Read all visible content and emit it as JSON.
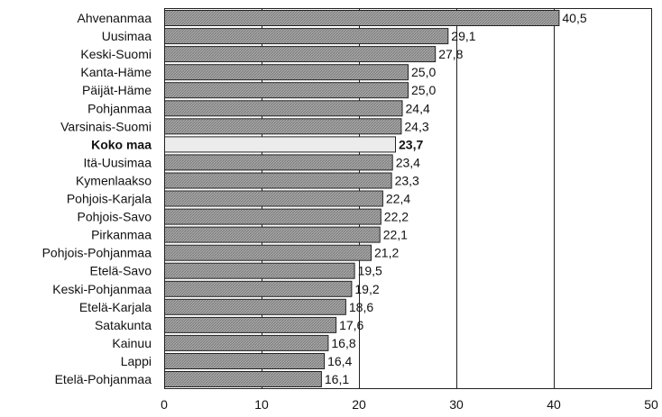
{
  "chart_data": {
    "type": "bar",
    "orientation": "horizontal",
    "categories": [
      "Ahvenanmaa",
      "Uusimaa",
      "Keski-Suomi",
      "Kanta-Häme",
      "Päijät-Häme",
      "Pohjanmaa",
      "Varsinais-Suomi",
      "Koko maa",
      "Itä-Uusimaa",
      "Kymenlaakso",
      "Pohjois-Karjala",
      "Pohjois-Savo",
      "Pirkanmaa",
      "Pohjois-Pohjanmaa",
      "Etelä-Savo",
      "Keski-Pohjanmaa",
      "Etelä-Karjala",
      "Satakunta",
      "Kainuu",
      "Lappi",
      "Etelä-Pohjanmaa"
    ],
    "values": [
      40.5,
      29.1,
      27.8,
      25.0,
      25.0,
      24.4,
      24.3,
      23.7,
      23.4,
      23.3,
      22.4,
      22.2,
      22.1,
      21.2,
      19.5,
      19.2,
      18.6,
      17.6,
      16.8,
      16.4,
      16.1
    ],
    "value_labels": [
      "40,5",
      "29,1",
      "27,8",
      "25,0",
      "25,0",
      "24,4",
      "24,3",
      "23,7",
      "23,4",
      "23,3",
      "22,4",
      "22,2",
      "22,1",
      "21,2",
      "19,5",
      "19,2",
      "18,6",
      "17,6",
      "16,8",
      "16,4",
      "16,1"
    ],
    "highlight_category": "Koko maa",
    "xlim": [
      0,
      50
    ],
    "xticks": [
      "0",
      "10",
      "20",
      "30",
      "40",
      "50"
    ],
    "grid": true,
    "title": "",
    "xlabel": "",
    "ylabel": "",
    "colors": {
      "bar": "#9a9a9a",
      "highlight": "#ececec",
      "line": "#222222"
    }
  }
}
